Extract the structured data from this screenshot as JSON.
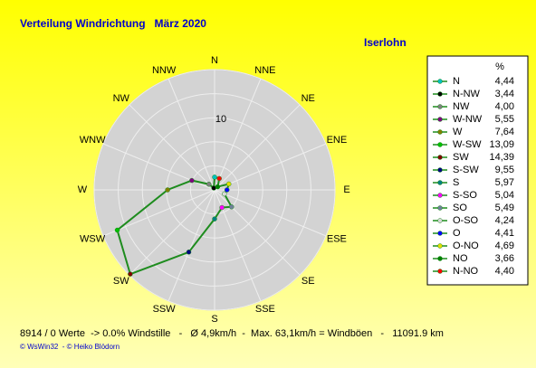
{
  "chart_data": {
    "type": "radar",
    "title": "Verteilung Windrichtung   März 2020",
    "location": "Iserlohn",
    "axis_labels": [
      "N",
      "NNE",
      "NE",
      "ENE",
      "E",
      "ESE",
      "SE",
      "SSE",
      "S",
      "SSW",
      "SW",
      "WSW",
      "W",
      "WNW",
      "NW",
      "NNW"
    ],
    "categories": [
      "N",
      "N-NW",
      "NW",
      "W-NW",
      "W",
      "W-SW",
      "SW",
      "S-SW",
      "S",
      "S-SO",
      "SO",
      "O-SO",
      "O",
      "O-NO",
      "NO",
      "N-NO"
    ],
    "values": [
      4.44,
      3.44,
      4.0,
      5.55,
      7.64,
      13.09,
      14.39,
      9.55,
      5.97,
      5.04,
      5.49,
      4.24,
      4.41,
      4.69,
      3.66,
      4.4
    ],
    "value_labels": [
      "4,44",
      "3,44",
      "4,00",
      "5,55",
      "7,64",
      "13,09",
      "14,39",
      "9,55",
      "5,97",
      "5,04",
      "5,49",
      "4,24",
      "4,41",
      "4,69",
      "3,66",
      "4,40"
    ],
    "colors": [
      "#00c0c0",
      "#000000",
      "#808080",
      "#800080",
      "#808000",
      "#00c000",
      "#800000",
      "#000080",
      "#008080",
      "#ff00ff",
      "#70809a",
      "#d8d8d8",
      "#0000ff",
      "#e0e000",
      "#008000",
      "#ff0000"
    ],
    "line_color": "#1e8c1e",
    "legend_title": "%",
    "rlim": [
      3.25,
      14.5
    ],
    "rticks": [
      10
    ],
    "rgrid": [
      5.5,
      7.75,
      12.25,
      14.5
    ],
    "note": "8914 / 0 Werte  -> 0.0% Windstille   -   Ø 4,9km/h  -  Max. 63,1km/h = Windböen   -   11091.9 km",
    "credit": "© WsWin32  - © Heiko Blödorn"
  }
}
